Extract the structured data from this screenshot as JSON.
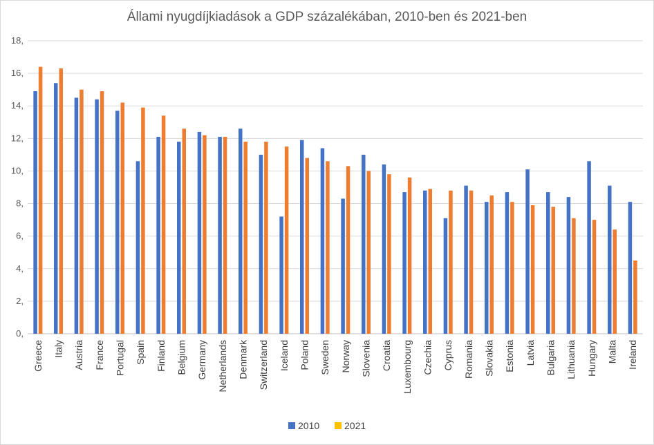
{
  "chart_data": {
    "type": "bar",
    "title": "Állami nyugdíjkiadások a GDP százalékában, 2010-ben és 2021-ben",
    "xlabel": "",
    "ylabel": "",
    "ylim": [
      0,
      18
    ],
    "yticks": [
      "0,",
      "2,",
      "4,",
      "6,",
      "8,",
      "10,",
      "12,",
      "14,",
      "16,",
      "18,"
    ],
    "grid": true,
    "legend_position": "bottom",
    "categories": [
      "Greece",
      "Italy",
      "Austria",
      "France",
      "Portugal",
      "Spain",
      "Finland",
      "Belgium",
      "Germany",
      "Netherlands",
      "Denmark",
      "Switzerland",
      "Iceland",
      "Poland",
      "Sweden",
      "Norway",
      "Slovenia",
      "Croatia",
      "Luxembourg",
      "Czechia",
      "Cyprus",
      "Romania",
      "Slovakia",
      "Estonia",
      "Latvia",
      "Bulgaria",
      "Lithuania",
      "Hungary",
      "Malta",
      "Ireland"
    ],
    "series": [
      {
        "name": "2010",
        "color": "#4472C4",
        "values": [
          14.9,
          15.4,
          14.5,
          14.4,
          13.7,
          10.6,
          12.1,
          11.8,
          12.4,
          12.1,
          12.6,
          11.0,
          7.2,
          11.9,
          11.4,
          8.3,
          11.0,
          10.4,
          8.7,
          8.8,
          7.1,
          9.1,
          8.1,
          8.7,
          10.1,
          8.7,
          8.4,
          10.6,
          9.1,
          8.1
        ]
      },
      {
        "name": "2021",
        "color": "#ED7D31",
        "legend_color": "#FFC000",
        "values": [
          16.4,
          16.3,
          15.0,
          14.9,
          14.2,
          13.9,
          13.4,
          12.6,
          12.2,
          12.1,
          11.8,
          11.8,
          11.5,
          10.8,
          10.6,
          10.3,
          10.0,
          9.8,
          9.6,
          8.9,
          8.8,
          8.8,
          8.5,
          8.1,
          7.9,
          7.8,
          7.1,
          7.0,
          6.4,
          4.5
        ]
      }
    ]
  }
}
